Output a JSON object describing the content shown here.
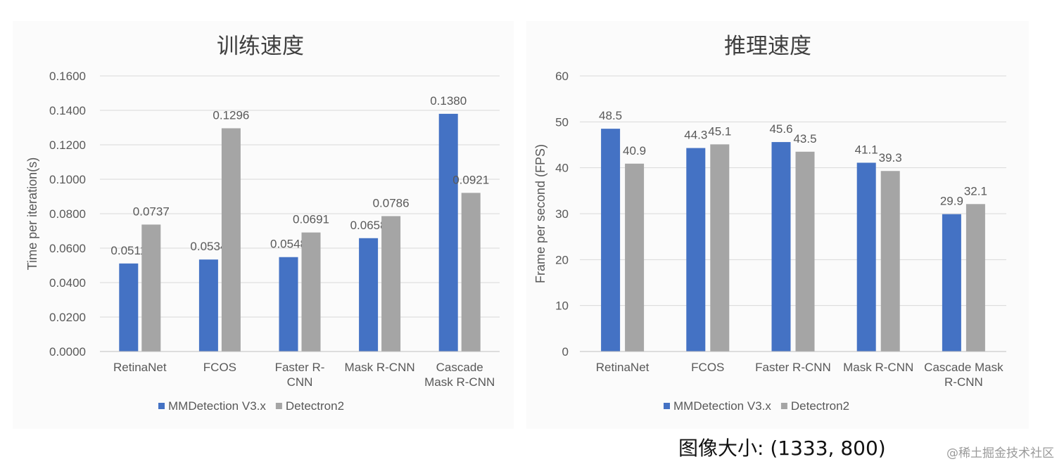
{
  "chart_data": [
    {
      "type": "bar",
      "title": "训练速度",
      "ylabel": "Time per iteration(s)",
      "xlabel": "",
      "categories": [
        "RetinaNet",
        "FCOS",
        "Faster R-CNN",
        "Mask R-CNN",
        "Cascade Mask R-CNN"
      ],
      "category_lines": [
        [
          "RetinaNet"
        ],
        [
          "FCOS"
        ],
        [
          "Faster R-",
          "CNN"
        ],
        [
          "Mask R-CNN"
        ],
        [
          "Cascade",
          "Mask R-CNN"
        ]
      ],
      "ylim": [
        0,
        0.16
      ],
      "yticks": [
        "0.0000",
        "0.0200",
        "0.0400",
        "0.0600",
        "0.0800",
        "0.1000",
        "0.1200",
        "0.1400",
        "0.1600"
      ],
      "grid": true,
      "legend_position": "bottom",
      "series": [
        {
          "name": "MMDetection V3.x",
          "color": "#4472c4",
          "values": [
            0.0511,
            0.0534,
            0.0548,
            0.0658,
            0.138
          ],
          "labels": [
            "0.0511",
            "0.0534",
            "0.0548",
            "0.0658",
            "0.1380"
          ]
        },
        {
          "name": "Detectron2",
          "color": "#a5a5a5",
          "values": [
            0.0737,
            0.1296,
            0.0691,
            0.0786,
            0.0921
          ],
          "labels": [
            "0.0737",
            "0.1296",
            "0.0691",
            "0.0786",
            "0.0921"
          ]
        }
      ]
    },
    {
      "type": "bar",
      "title": "推理速度",
      "ylabel": "Frame per second (FPS)",
      "xlabel": "",
      "categories": [
        "RetinaNet",
        "FCOS",
        "Faster R-CNN",
        "Mask R-CNN",
        "Cascade Mask R-CNN"
      ],
      "category_lines": [
        [
          "RetinaNet"
        ],
        [
          "FCOS"
        ],
        [
          "Faster R-CNN"
        ],
        [
          "Mask R-CNN"
        ],
        [
          "Cascade Mask",
          "R-CNN"
        ]
      ],
      "ylim": [
        0,
        60
      ],
      "yticks": [
        "0",
        "10",
        "20",
        "30",
        "40",
        "50",
        "60"
      ],
      "grid": true,
      "legend_position": "bottom",
      "series": [
        {
          "name": "MMDetection V3.x",
          "color": "#4472c4",
          "values": [
            48.5,
            44.3,
            45.6,
            41.1,
            29.9
          ],
          "labels": [
            "48.5",
            "44.3",
            "45.6",
            "41.1",
            "29.9"
          ]
        },
        {
          "name": "Detectron2",
          "color": "#a5a5a5",
          "values": [
            40.9,
            45.1,
            43.5,
            39.3,
            32.1
          ],
          "labels": [
            "40.9",
            "45.1",
            "43.5",
            "39.3",
            "32.1"
          ]
        }
      ]
    }
  ],
  "caption": "图像大小: (1333, 800)",
  "watermark": "@稀土掘金技术社区"
}
